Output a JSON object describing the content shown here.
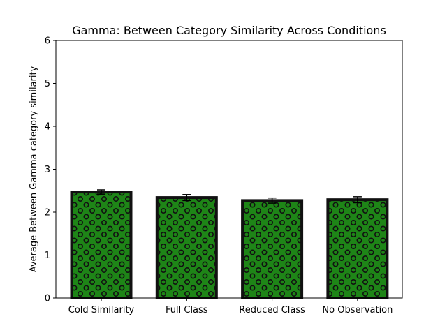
{
  "chart_data": {
    "type": "bar",
    "title": "Gamma: Between Category Similarity Across Conditions",
    "xlabel": "",
    "ylabel": "Average Between Gamma category similarity",
    "categories": [
      "Cold Similarity",
      "Full Class",
      "Reduced Class",
      "No Observation"
    ],
    "values": [
      2.47,
      2.34,
      2.27,
      2.29
    ],
    "errors": [
      0.05,
      0.07,
      0.06,
      0.07
    ],
    "ylim": [
      0,
      6
    ],
    "yticks": [
      "0",
      "1",
      "2",
      "3",
      "4",
      "5",
      "6"
    ],
    "bar_color": "#1e8517",
    "edge_color": "#111111",
    "hatch": "circles",
    "grid": false,
    "legend": "none"
  }
}
